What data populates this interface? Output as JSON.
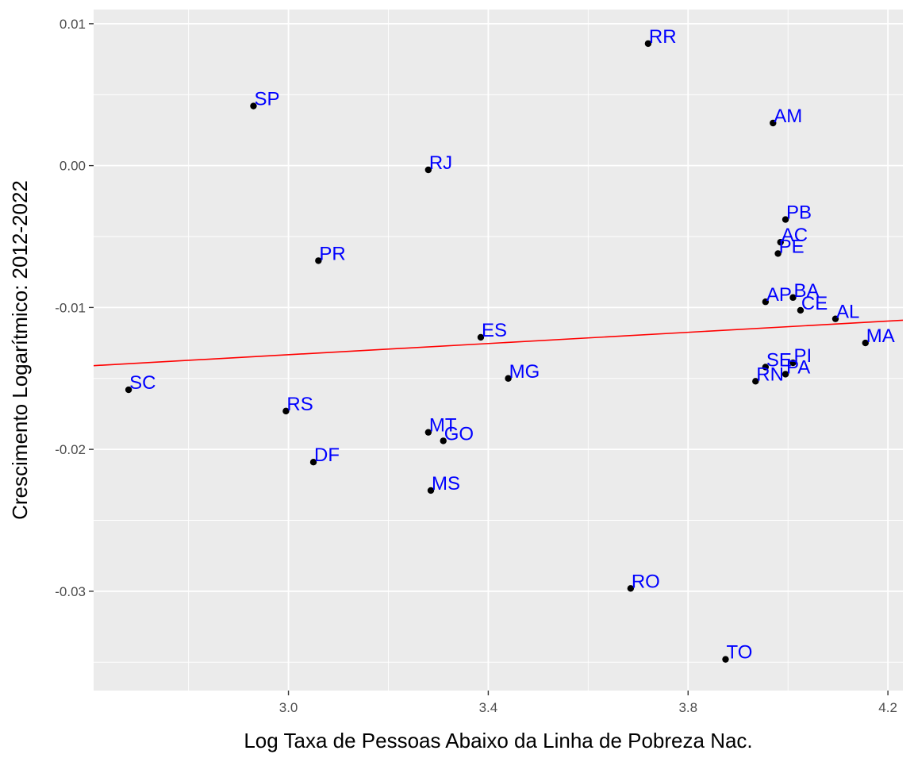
{
  "chart_data": {
    "type": "scatter",
    "title": "",
    "xlabel": "Log Taxa de Pessoas Abaixo da Linha de Pobreza Nac.",
    "ylabel": "Crescimento Logarítmico: 2012-2022",
    "xlim": [
      2.61,
      4.23
    ],
    "ylim": [
      -0.037,
      0.011
    ],
    "x_ticks": [
      {
        "value": 3.0,
        "label": "3.0"
      },
      {
        "value": 3.4,
        "label": "3.4"
      },
      {
        "value": 3.8,
        "label": "3.8"
      },
      {
        "value": 4.2,
        "label": "4.2"
      }
    ],
    "y_ticks": [
      {
        "value": 0.01,
        "label": "0.01"
      },
      {
        "value": 0.0,
        "label": "0.00"
      },
      {
        "value": -0.01,
        "label": "-0.01"
      },
      {
        "value": -0.02,
        "label": "-0.02"
      },
      {
        "value": -0.03,
        "label": "-0.03"
      }
    ],
    "grid": true,
    "colors": {
      "panel": "#ebebeb",
      "grid": "#ffffff",
      "point": "#000000",
      "label": "#0000ff",
      "trend": "#ff0000"
    },
    "trend_line": {
      "x": [
        2.61,
        4.23
      ],
      "y": [
        -0.0141,
        -0.0109
      ]
    },
    "points": [
      {
        "label": "RR",
        "x": 3.72,
        "y": 0.0086
      },
      {
        "label": "SP",
        "x": 2.93,
        "y": 0.0042
      },
      {
        "label": "AM",
        "x": 3.97,
        "y": 0.003
      },
      {
        "label": "RJ",
        "x": 3.28,
        "y": -0.0003
      },
      {
        "label": "PB",
        "x": 3.995,
        "y": -0.0038
      },
      {
        "label": "AC",
        "x": 3.985,
        "y": -0.0054
      },
      {
        "label": "PE",
        "x": 3.98,
        "y": -0.0062
      },
      {
        "label": "PR",
        "x": 3.06,
        "y": -0.0067
      },
      {
        "label": "AP",
        "x": 3.955,
        "y": -0.0096
      },
      {
        "label": "BA",
        "x": 4.01,
        "y": -0.0093
      },
      {
        "label": "CE",
        "x": 4.025,
        "y": -0.0102
      },
      {
        "label": "AL",
        "x": 4.095,
        "y": -0.0108
      },
      {
        "label": "ES",
        "x": 3.385,
        "y": -0.0121
      },
      {
        "label": "MA",
        "x": 4.155,
        "y": -0.0125
      },
      {
        "label": "PI",
        "x": 4.01,
        "y": -0.0139
      },
      {
        "label": "SE",
        "x": 3.955,
        "y": -0.0142
      },
      {
        "label": "PA",
        "x": 3.995,
        "y": -0.0147
      },
      {
        "label": "RN",
        "x": 3.935,
        "y": -0.0152
      },
      {
        "label": "MG",
        "x": 3.44,
        "y": -0.015
      },
      {
        "label": "SC",
        "x": 2.68,
        "y": -0.0158
      },
      {
        "label": "RS",
        "x": 2.995,
        "y": -0.0173
      },
      {
        "label": "MT",
        "x": 3.28,
        "y": -0.0188
      },
      {
        "label": "GO",
        "x": 3.31,
        "y": -0.0194
      },
      {
        "label": "DF",
        "x": 3.05,
        "y": -0.0209
      },
      {
        "label": "MS",
        "x": 3.285,
        "y": -0.0229
      },
      {
        "label": "RO",
        "x": 3.685,
        "y": -0.0298
      },
      {
        "label": "TO",
        "x": 3.875,
        "y": -0.0348
      }
    ]
  }
}
